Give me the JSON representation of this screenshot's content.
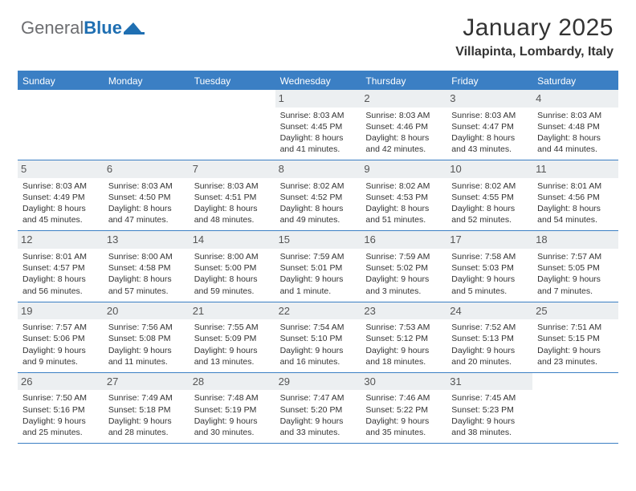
{
  "logo": {
    "text1": "General",
    "text2": "Blue"
  },
  "header": {
    "title": "January 2025",
    "location": "Villapinta, Lombardy, Italy"
  },
  "colors": {
    "header_bg": "#3b7fc4",
    "header_text": "#ffffff",
    "daynum_bg": "#eceff1",
    "border": "#3b7fc4",
    "body_text": "#333333",
    "page_bg": "#ffffff"
  },
  "day_names": [
    "Sunday",
    "Monday",
    "Tuesday",
    "Wednesday",
    "Thursday",
    "Friday",
    "Saturday"
  ],
  "weeks": [
    [
      {
        "n": "",
        "sr": "",
        "ss": "",
        "d1": "",
        "d2": ""
      },
      {
        "n": "",
        "sr": "",
        "ss": "",
        "d1": "",
        "d2": ""
      },
      {
        "n": "",
        "sr": "",
        "ss": "",
        "d1": "",
        "d2": ""
      },
      {
        "n": "1",
        "sr": "Sunrise: 8:03 AM",
        "ss": "Sunset: 4:45 PM",
        "d1": "Daylight: 8 hours",
        "d2": "and 41 minutes."
      },
      {
        "n": "2",
        "sr": "Sunrise: 8:03 AM",
        "ss": "Sunset: 4:46 PM",
        "d1": "Daylight: 8 hours",
        "d2": "and 42 minutes."
      },
      {
        "n": "3",
        "sr": "Sunrise: 8:03 AM",
        "ss": "Sunset: 4:47 PM",
        "d1": "Daylight: 8 hours",
        "d2": "and 43 minutes."
      },
      {
        "n": "4",
        "sr": "Sunrise: 8:03 AM",
        "ss": "Sunset: 4:48 PM",
        "d1": "Daylight: 8 hours",
        "d2": "and 44 minutes."
      }
    ],
    [
      {
        "n": "5",
        "sr": "Sunrise: 8:03 AM",
        "ss": "Sunset: 4:49 PM",
        "d1": "Daylight: 8 hours",
        "d2": "and 45 minutes."
      },
      {
        "n": "6",
        "sr": "Sunrise: 8:03 AM",
        "ss": "Sunset: 4:50 PM",
        "d1": "Daylight: 8 hours",
        "d2": "and 47 minutes."
      },
      {
        "n": "7",
        "sr": "Sunrise: 8:03 AM",
        "ss": "Sunset: 4:51 PM",
        "d1": "Daylight: 8 hours",
        "d2": "and 48 minutes."
      },
      {
        "n": "8",
        "sr": "Sunrise: 8:02 AM",
        "ss": "Sunset: 4:52 PM",
        "d1": "Daylight: 8 hours",
        "d2": "and 49 minutes."
      },
      {
        "n": "9",
        "sr": "Sunrise: 8:02 AM",
        "ss": "Sunset: 4:53 PM",
        "d1": "Daylight: 8 hours",
        "d2": "and 51 minutes."
      },
      {
        "n": "10",
        "sr": "Sunrise: 8:02 AM",
        "ss": "Sunset: 4:55 PM",
        "d1": "Daylight: 8 hours",
        "d2": "and 52 minutes."
      },
      {
        "n": "11",
        "sr": "Sunrise: 8:01 AM",
        "ss": "Sunset: 4:56 PM",
        "d1": "Daylight: 8 hours",
        "d2": "and 54 minutes."
      }
    ],
    [
      {
        "n": "12",
        "sr": "Sunrise: 8:01 AM",
        "ss": "Sunset: 4:57 PM",
        "d1": "Daylight: 8 hours",
        "d2": "and 56 minutes."
      },
      {
        "n": "13",
        "sr": "Sunrise: 8:00 AM",
        "ss": "Sunset: 4:58 PM",
        "d1": "Daylight: 8 hours",
        "d2": "and 57 minutes."
      },
      {
        "n": "14",
        "sr": "Sunrise: 8:00 AM",
        "ss": "Sunset: 5:00 PM",
        "d1": "Daylight: 8 hours",
        "d2": "and 59 minutes."
      },
      {
        "n": "15",
        "sr": "Sunrise: 7:59 AM",
        "ss": "Sunset: 5:01 PM",
        "d1": "Daylight: 9 hours",
        "d2": "and 1 minute."
      },
      {
        "n": "16",
        "sr": "Sunrise: 7:59 AM",
        "ss": "Sunset: 5:02 PM",
        "d1": "Daylight: 9 hours",
        "d2": "and 3 minutes."
      },
      {
        "n": "17",
        "sr": "Sunrise: 7:58 AM",
        "ss": "Sunset: 5:03 PM",
        "d1": "Daylight: 9 hours",
        "d2": "and 5 minutes."
      },
      {
        "n": "18",
        "sr": "Sunrise: 7:57 AM",
        "ss": "Sunset: 5:05 PM",
        "d1": "Daylight: 9 hours",
        "d2": "and 7 minutes."
      }
    ],
    [
      {
        "n": "19",
        "sr": "Sunrise: 7:57 AM",
        "ss": "Sunset: 5:06 PM",
        "d1": "Daylight: 9 hours",
        "d2": "and 9 minutes."
      },
      {
        "n": "20",
        "sr": "Sunrise: 7:56 AM",
        "ss": "Sunset: 5:08 PM",
        "d1": "Daylight: 9 hours",
        "d2": "and 11 minutes."
      },
      {
        "n": "21",
        "sr": "Sunrise: 7:55 AM",
        "ss": "Sunset: 5:09 PM",
        "d1": "Daylight: 9 hours",
        "d2": "and 13 minutes."
      },
      {
        "n": "22",
        "sr": "Sunrise: 7:54 AM",
        "ss": "Sunset: 5:10 PM",
        "d1": "Daylight: 9 hours",
        "d2": "and 16 minutes."
      },
      {
        "n": "23",
        "sr": "Sunrise: 7:53 AM",
        "ss": "Sunset: 5:12 PM",
        "d1": "Daylight: 9 hours",
        "d2": "and 18 minutes."
      },
      {
        "n": "24",
        "sr": "Sunrise: 7:52 AM",
        "ss": "Sunset: 5:13 PM",
        "d1": "Daylight: 9 hours",
        "d2": "and 20 minutes."
      },
      {
        "n": "25",
        "sr": "Sunrise: 7:51 AM",
        "ss": "Sunset: 5:15 PM",
        "d1": "Daylight: 9 hours",
        "d2": "and 23 minutes."
      }
    ],
    [
      {
        "n": "26",
        "sr": "Sunrise: 7:50 AM",
        "ss": "Sunset: 5:16 PM",
        "d1": "Daylight: 9 hours",
        "d2": "and 25 minutes."
      },
      {
        "n": "27",
        "sr": "Sunrise: 7:49 AM",
        "ss": "Sunset: 5:18 PM",
        "d1": "Daylight: 9 hours",
        "d2": "and 28 minutes."
      },
      {
        "n": "28",
        "sr": "Sunrise: 7:48 AM",
        "ss": "Sunset: 5:19 PM",
        "d1": "Daylight: 9 hours",
        "d2": "and 30 minutes."
      },
      {
        "n": "29",
        "sr": "Sunrise: 7:47 AM",
        "ss": "Sunset: 5:20 PM",
        "d1": "Daylight: 9 hours",
        "d2": "and 33 minutes."
      },
      {
        "n": "30",
        "sr": "Sunrise: 7:46 AM",
        "ss": "Sunset: 5:22 PM",
        "d1": "Daylight: 9 hours",
        "d2": "and 35 minutes."
      },
      {
        "n": "31",
        "sr": "Sunrise: 7:45 AM",
        "ss": "Sunset: 5:23 PM",
        "d1": "Daylight: 9 hours",
        "d2": "and 38 minutes."
      },
      {
        "n": "",
        "sr": "",
        "ss": "",
        "d1": "",
        "d2": ""
      }
    ]
  ]
}
